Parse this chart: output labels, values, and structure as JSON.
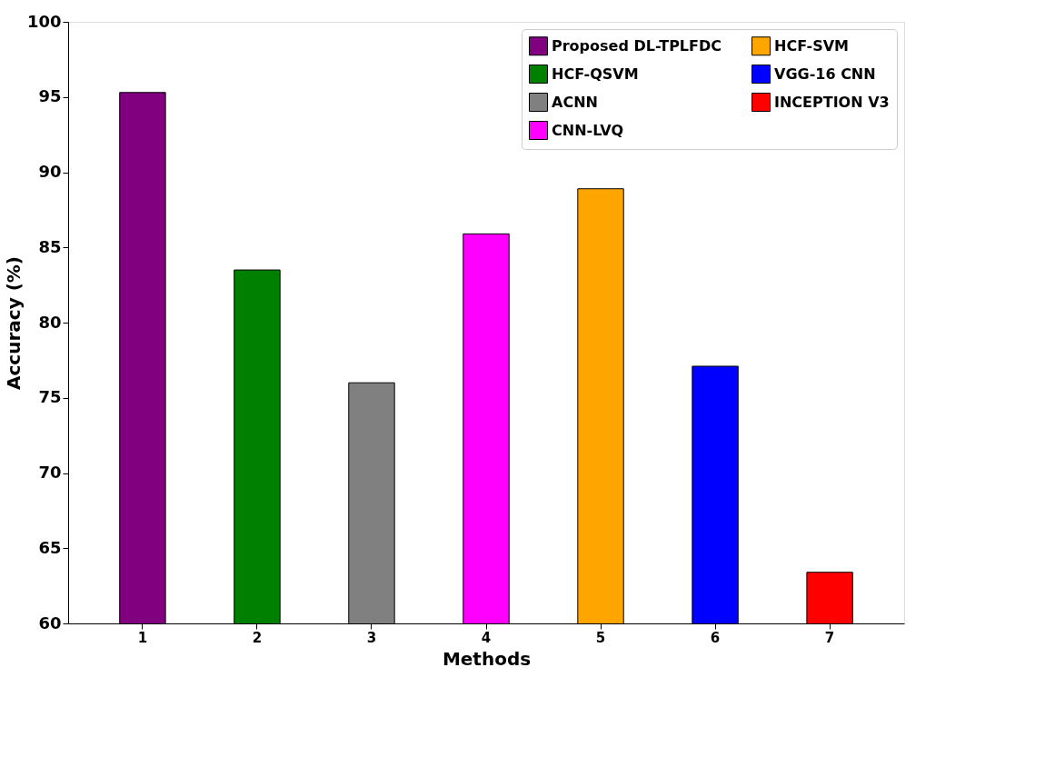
{
  "chart_data": {
    "type": "bar",
    "xlabel": "Methods",
    "ylabel": "Accuracy (%)",
    "categories": [
      "1",
      "2",
      "3",
      "4",
      "5",
      "6",
      "7"
    ],
    "series": [
      {
        "name": "Proposed DL-TPLFDC",
        "color": "#800080",
        "values": [
          95.3,
          null,
          null,
          null,
          null,
          null,
          null
        ]
      },
      {
        "name": "HCF-QSVM",
        "color": "#008000",
        "values": [
          null,
          83.5,
          null,
          null,
          null,
          null,
          null
        ]
      },
      {
        "name": "ACNN",
        "color": "#808080",
        "values": [
          null,
          null,
          76.0,
          null,
          null,
          null,
          null
        ]
      },
      {
        "name": "CNN-LVQ",
        "color": "#ff00ff",
        "values": [
          null,
          null,
          null,
          85.9,
          null,
          null,
          null
        ]
      },
      {
        "name": "HCF-SVM",
        "color": "#ffa500",
        "values": [
          null,
          null,
          null,
          null,
          88.9,
          null,
          null
        ]
      },
      {
        "name": "VGG-16 CNN",
        "color": "#0000ff",
        "values": [
          null,
          null,
          null,
          null,
          null,
          77.1,
          null
        ]
      },
      {
        "name": "INCEPTION V3",
        "color": "#ff0000",
        "values": [
          null,
          null,
          null,
          null,
          null,
          null,
          63.4
        ]
      }
    ],
    "ylim": [
      60,
      100
    ],
    "yticks": [
      60,
      65,
      70,
      75,
      80,
      85,
      90,
      95,
      100
    ],
    "grid": false,
    "legend": "top right"
  }
}
